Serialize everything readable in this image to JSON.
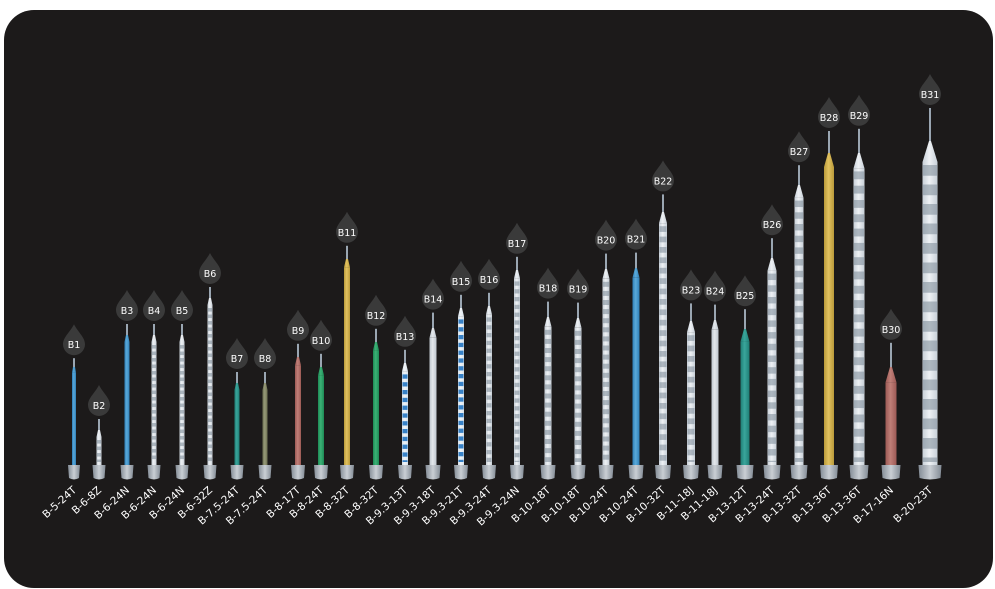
{
  "colors": {
    "background": "#1c1a1a",
    "page": "#ffffff",
    "drop": "#3a3a3a",
    "label_text": "#ffffff",
    "base": "#b9c2cc"
  },
  "products": [
    {
      "tag": "B1",
      "model": "B-5-24T",
      "fill": "blue-solid"
    },
    {
      "tag": "B2",
      "model": "B-6-8Z",
      "fill": "clear-pattern"
    },
    {
      "tag": "B3",
      "model": "B-6-24N",
      "fill": "blue-solid"
    },
    {
      "tag": "B4",
      "model": "B-6-24N",
      "fill": "clear-pattern"
    },
    {
      "tag": "B5",
      "model": "B-6-24N",
      "fill": "clear-pattern"
    },
    {
      "tag": "B6",
      "model": "B-6-32Z",
      "fill": "clear-pattern"
    },
    {
      "tag": "B7",
      "model": "B-7.5-24T",
      "fill": "teal-solid"
    },
    {
      "tag": "B8",
      "model": "B-7.5-24T",
      "fill": "olive-solid"
    },
    {
      "tag": "B9",
      "model": "B-8-17T",
      "fill": "red-solid"
    },
    {
      "tag": "B10",
      "model": "B-8-24T",
      "fill": "green-solid"
    },
    {
      "tag": "B11",
      "model": "B-8-32T",
      "fill": "gold-solid"
    },
    {
      "tag": "B12",
      "model": "B-8-32T",
      "fill": "green-solid"
    },
    {
      "tag": "B13",
      "model": "B-9.3-13T",
      "fill": "blue-checker"
    },
    {
      "tag": "B14",
      "model": "B-9.3-18T",
      "fill": "clear-plain"
    },
    {
      "tag": "B15",
      "model": "B-9.3-21T",
      "fill": "blue-checker"
    },
    {
      "tag": "B16",
      "model": "B-9.3-24T",
      "fill": "clear-pattern"
    },
    {
      "tag": "B17",
      "model": "B-9.3-24N",
      "fill": "clear-pattern"
    },
    {
      "tag": "B18",
      "model": "B-10-18T",
      "fill": "clear-pattern"
    },
    {
      "tag": "B19",
      "model": "B-10-18T",
      "fill": "clear-pattern"
    },
    {
      "tag": "B20",
      "model": "B-10-24T",
      "fill": "clear-pattern"
    },
    {
      "tag": "B21",
      "model": "B-10-24T",
      "fill": "blue-solid"
    },
    {
      "tag": "B22",
      "model": "B-10-32T",
      "fill": "clear-pattern"
    },
    {
      "tag": "B23",
      "model": "B-11-18J",
      "fill": "clear-pattern"
    },
    {
      "tag": "B24",
      "model": "B-11-18J",
      "fill": "clear-plain"
    },
    {
      "tag": "B25",
      "model": "B-13-12T",
      "fill": "teal-solid"
    },
    {
      "tag": "B26",
      "model": "B-13-24T",
      "fill": "clear-pattern"
    },
    {
      "tag": "B27",
      "model": "B-13-32T",
      "fill": "clear-pattern"
    },
    {
      "tag": "B28",
      "model": "B-13-36T",
      "fill": "gold-solid"
    },
    {
      "tag": "B29",
      "model": "B-13-36T",
      "fill": "clear-pattern"
    },
    {
      "tag": "B30",
      "model": "B-17-16N",
      "fill": "red-solid"
    },
    {
      "tag": "B31",
      "model": "B-20-23T",
      "fill": "clear-pattern"
    }
  ]
}
